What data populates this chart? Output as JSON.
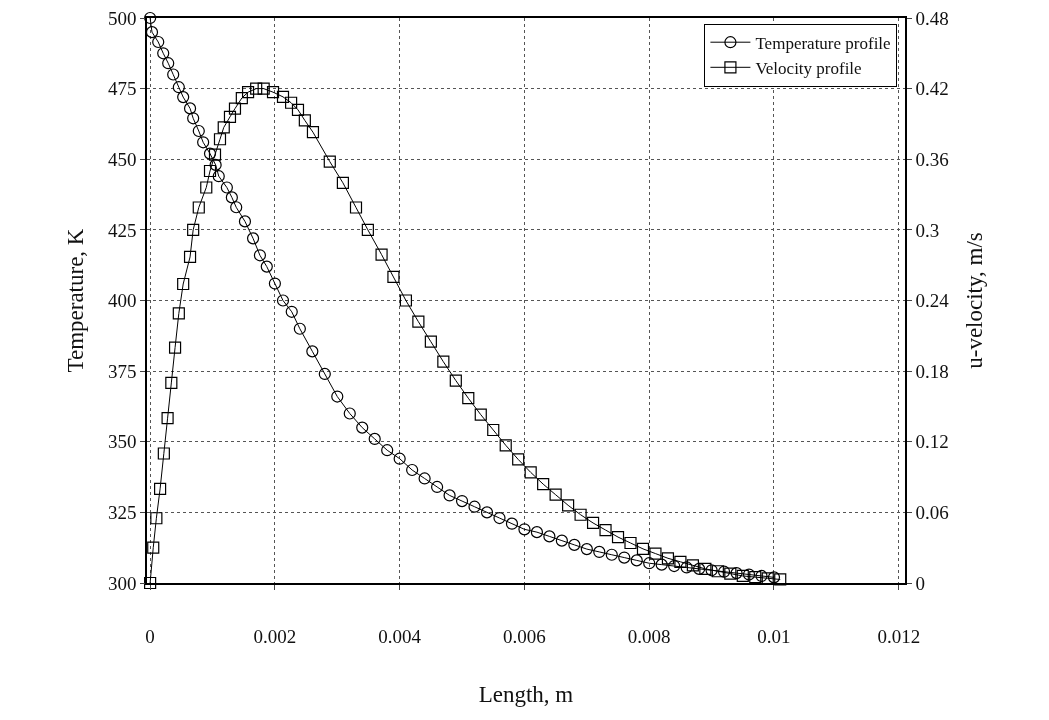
{
  "chart_data": {
    "type": "line",
    "xlabel": "Length, m",
    "ylabel": "Temperature, K",
    "y2label": "u-velocity, m/s",
    "xlim": [
      -5e-05,
      0.0121
    ],
    "xticks": [
      0,
      0.002,
      0.004,
      0.006,
      0.008,
      0.01,
      0.012
    ],
    "ylim": [
      300,
      500
    ],
    "yticks": [
      300,
      325,
      350,
      375,
      400,
      425,
      450,
      475,
      500
    ],
    "y2lim": [
      0,
      0.48
    ],
    "y2ticks": [
      0,
      0.06,
      0.12,
      0.18,
      0.24,
      0.3,
      0.36,
      0.42,
      0.48
    ],
    "grid": true,
    "legend": "top right",
    "line_style": "solid",
    "series": [
      {
        "name": "Temperature profile",
        "color": "#000000",
        "marker": "circle",
        "x": [
          0,
          3e-05,
          0.00013,
          0.00021,
          0.00029,
          0.00037,
          0.00046,
          0.00053,
          0.00064,
          0.00069,
          0.00078,
          0.00085,
          0.00096,
          0.00105,
          0.0011,
          0.00123,
          0.00131,
          0.00138,
          0.00152,
          0.00165,
          0.00176,
          0.00187,
          0.002,
          0.00213,
          0.00227,
          0.0024,
          0.0026,
          0.0028,
          0.003,
          0.0032,
          0.0034,
          0.0036,
          0.0038,
          0.004,
          0.0042,
          0.0044,
          0.0046,
          0.0048,
          0.005,
          0.0052,
          0.0054,
          0.0056,
          0.0058,
          0.006,
          0.0062,
          0.0064,
          0.0066,
          0.0068,
          0.007,
          0.0072,
          0.0074,
          0.0076,
          0.0078,
          0.008,
          0.0082,
          0.0084,
          0.0086,
          0.0088,
          0.009,
          0.0092,
          0.0094,
          0.0096,
          0.0098,
          0.01
        ],
        "values": [
          500,
          495,
          491.5,
          487.5,
          484,
          480,
          475.5,
          472,
          468,
          464.5,
          460,
          456,
          452,
          448,
          444,
          440,
          436.5,
          433,
          428,
          422,
          416,
          412,
          406,
          400,
          396,
          390,
          382,
          374,
          366,
          360,
          355,
          351,
          347,
          344,
          340,
          337,
          334,
          331,
          329,
          327,
          325,
          323,
          321,
          319,
          318,
          316.5,
          315,
          313.5,
          312,
          311,
          310,
          309,
          308,
          307,
          306.5,
          306,
          305.5,
          305,
          304.5,
          304,
          303.5,
          303,
          302.5,
          302
        ]
      },
      {
        "name": "Velocity profile",
        "color": "#000000",
        "marker": "square",
        "axis": "y2",
        "x": [
          0,
          5e-05,
          0.0001,
          0.00016,
          0.00022,
          0.00028,
          0.00034,
          0.0004,
          0.00046,
          0.00053,
          0.00064,
          0.00069,
          0.00078,
          0.0009,
          0.00096,
          0.00104,
          0.00112,
          0.00118,
          0.00128,
          0.00136,
          0.00147,
          0.00157,
          0.0017,
          0.00182,
          0.00197,
          0.00213,
          0.00226,
          0.00237,
          0.00248,
          0.00261,
          0.00288,
          0.00309,
          0.0033,
          0.00349,
          0.00371,
          0.0039,
          0.0041,
          0.0043,
          0.0045,
          0.0047,
          0.0049,
          0.0051,
          0.0053,
          0.0055,
          0.0057,
          0.0059,
          0.0061,
          0.0063,
          0.0065,
          0.0067,
          0.0069,
          0.0071,
          0.0073,
          0.0075,
          0.0077,
          0.0079,
          0.0081,
          0.0083,
          0.0085,
          0.0087,
          0.0089,
          0.0091,
          0.0093,
          0.0095,
          0.0097,
          0.0099,
          0.0101
        ],
        "values": [
          0,
          0.03,
          0.055,
          0.08,
          0.11,
          0.14,
          0.17,
          0.2,
          0.229,
          0.254,
          0.277,
          0.3,
          0.319,
          0.336,
          0.35,
          0.364,
          0.377,
          0.387,
          0.396,
          0.403,
          0.412,
          0.417,
          0.42,
          0.42,
          0.417,
          0.413,
          0.408,
          0.402,
          0.393,
          0.383,
          0.358,
          0.34,
          0.319,
          0.3,
          0.279,
          0.26,
          0.24,
          0.222,
          0.205,
          0.188,
          0.172,
          0.157,
          0.143,
          0.13,
          0.117,
          0.105,
          0.094,
          0.084,
          0.075,
          0.066,
          0.058,
          0.051,
          0.045,
          0.039,
          0.034,
          0.029,
          0.025,
          0.021,
          0.018,
          0.015,
          0.012,
          0.01,
          0.008,
          0.006,
          0.005,
          0.004,
          0.003
        ]
      }
    ]
  }
}
